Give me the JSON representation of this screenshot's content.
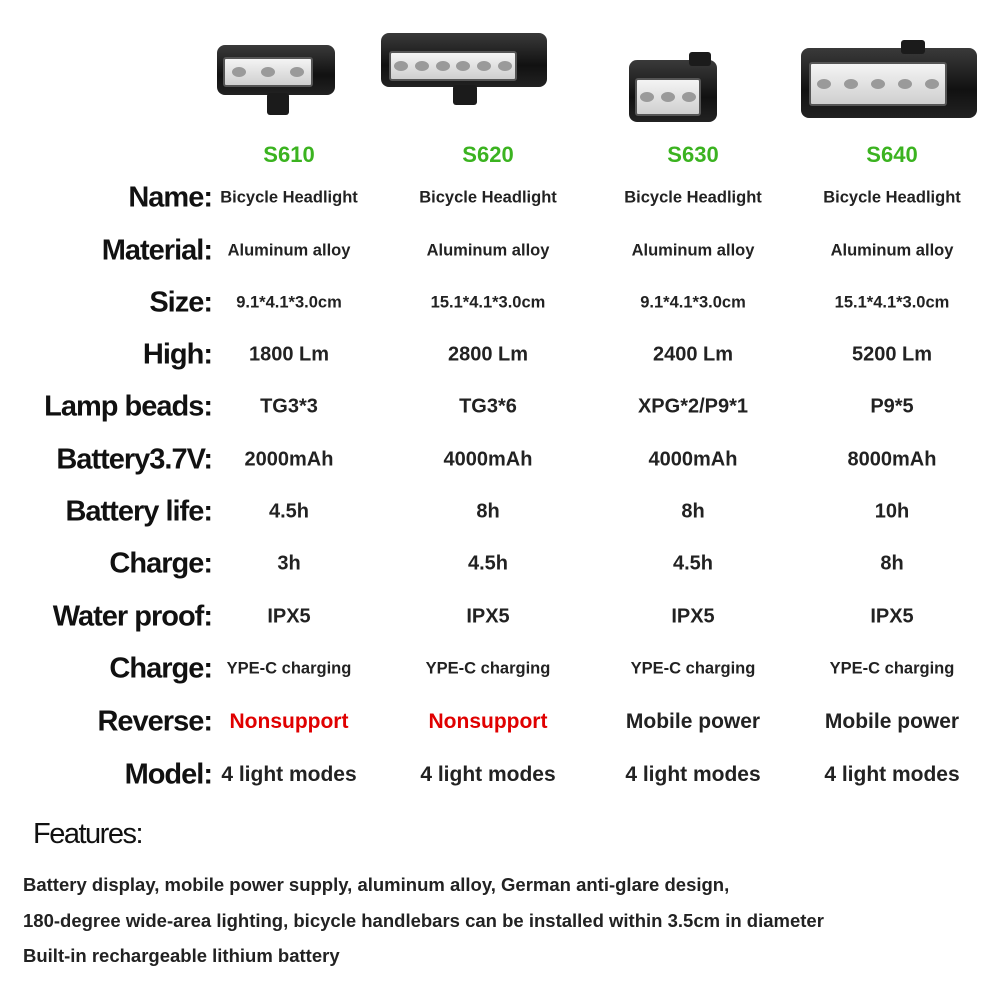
{
  "accent_color": "#3bb320",
  "warning_color": "#e00000",
  "products": [
    {
      "model": "S610",
      "name": "Bicycle Headlight",
      "material": "Aluminum alloy",
      "size": "9.1*4.1*3.0cm",
      "high": "1800 Lm",
      "lamp_beads": "TG3*3",
      "battery": "2000mAh",
      "battery_life": "4.5h",
      "charge_time": "3h",
      "water_proof": "IPX5",
      "charge": "YPE-C charging",
      "reverse": "Nonsupport",
      "reverse_supported": false,
      "model_modes": "4 light modes"
    },
    {
      "model": "S620",
      "name": "Bicycle Headlight",
      "material": "Aluminum alloy",
      "size": "15.1*4.1*3.0cm",
      "high": "2800 Lm",
      "lamp_beads": "TG3*6",
      "battery": "4000mAh",
      "battery_life": "8h",
      "charge_time": "4.5h",
      "water_proof": "IPX5",
      "charge": "YPE-C charging",
      "reverse": "Nonsupport",
      "reverse_supported": false,
      "model_modes": "4 light modes"
    },
    {
      "model": "S630",
      "name": "Bicycle Headlight",
      "material": "Aluminum alloy",
      "size": "9.1*4.1*3.0cm",
      "high": "2400 Lm",
      "lamp_beads": "XPG*2/P9*1",
      "battery": "4000mAh",
      "battery_life": "8h",
      "charge_time": "4.5h",
      "water_proof": "IPX5",
      "charge": "YPE-C charging",
      "reverse": "Mobile power",
      "reverse_supported": true,
      "model_modes": "4 light modes"
    },
    {
      "model": "S640",
      "name": "Bicycle Headlight",
      "material": "Aluminum alloy",
      "size": "15.1*4.1*3.0cm",
      "high": "5200 Lm",
      "lamp_beads": "P9*5",
      "battery": "8000mAh",
      "battery_life": "10h",
      "charge_time": "8h",
      "water_proof": "IPX5",
      "charge": "YPE-C charging",
      "reverse": "Mobile power",
      "reverse_supported": true,
      "model_modes": "4 light modes"
    }
  ],
  "rows": [
    {
      "key": "name",
      "label": "Name:"
    },
    {
      "key": "material",
      "label": "Material:"
    },
    {
      "key": "size",
      "label": "Size:"
    },
    {
      "key": "high",
      "label": "High:"
    },
    {
      "key": "lamp_beads",
      "label": "Lamp beads:"
    },
    {
      "key": "battery",
      "label": "Battery3.7V:"
    },
    {
      "key": "battery_life",
      "label": "Battery life:"
    },
    {
      "key": "charge_time",
      "label": "Charge:"
    },
    {
      "key": "water_proof",
      "label": "Water proof:"
    },
    {
      "key": "charge",
      "label": "Charge:"
    },
    {
      "key": "reverse",
      "label": "Reverse:"
    },
    {
      "key": "model_modes",
      "label": "Model:"
    }
  ],
  "features": {
    "title": "Features:",
    "lines": [
      "Battery display, mobile power supply, aluminum alloy, German anti-glare design,",
      " 180-degree wide-area lighting, bicycle handlebars can be installed within 3.5cm in diameter",
      "Built-in rechargeable lithium battery"
    ]
  }
}
